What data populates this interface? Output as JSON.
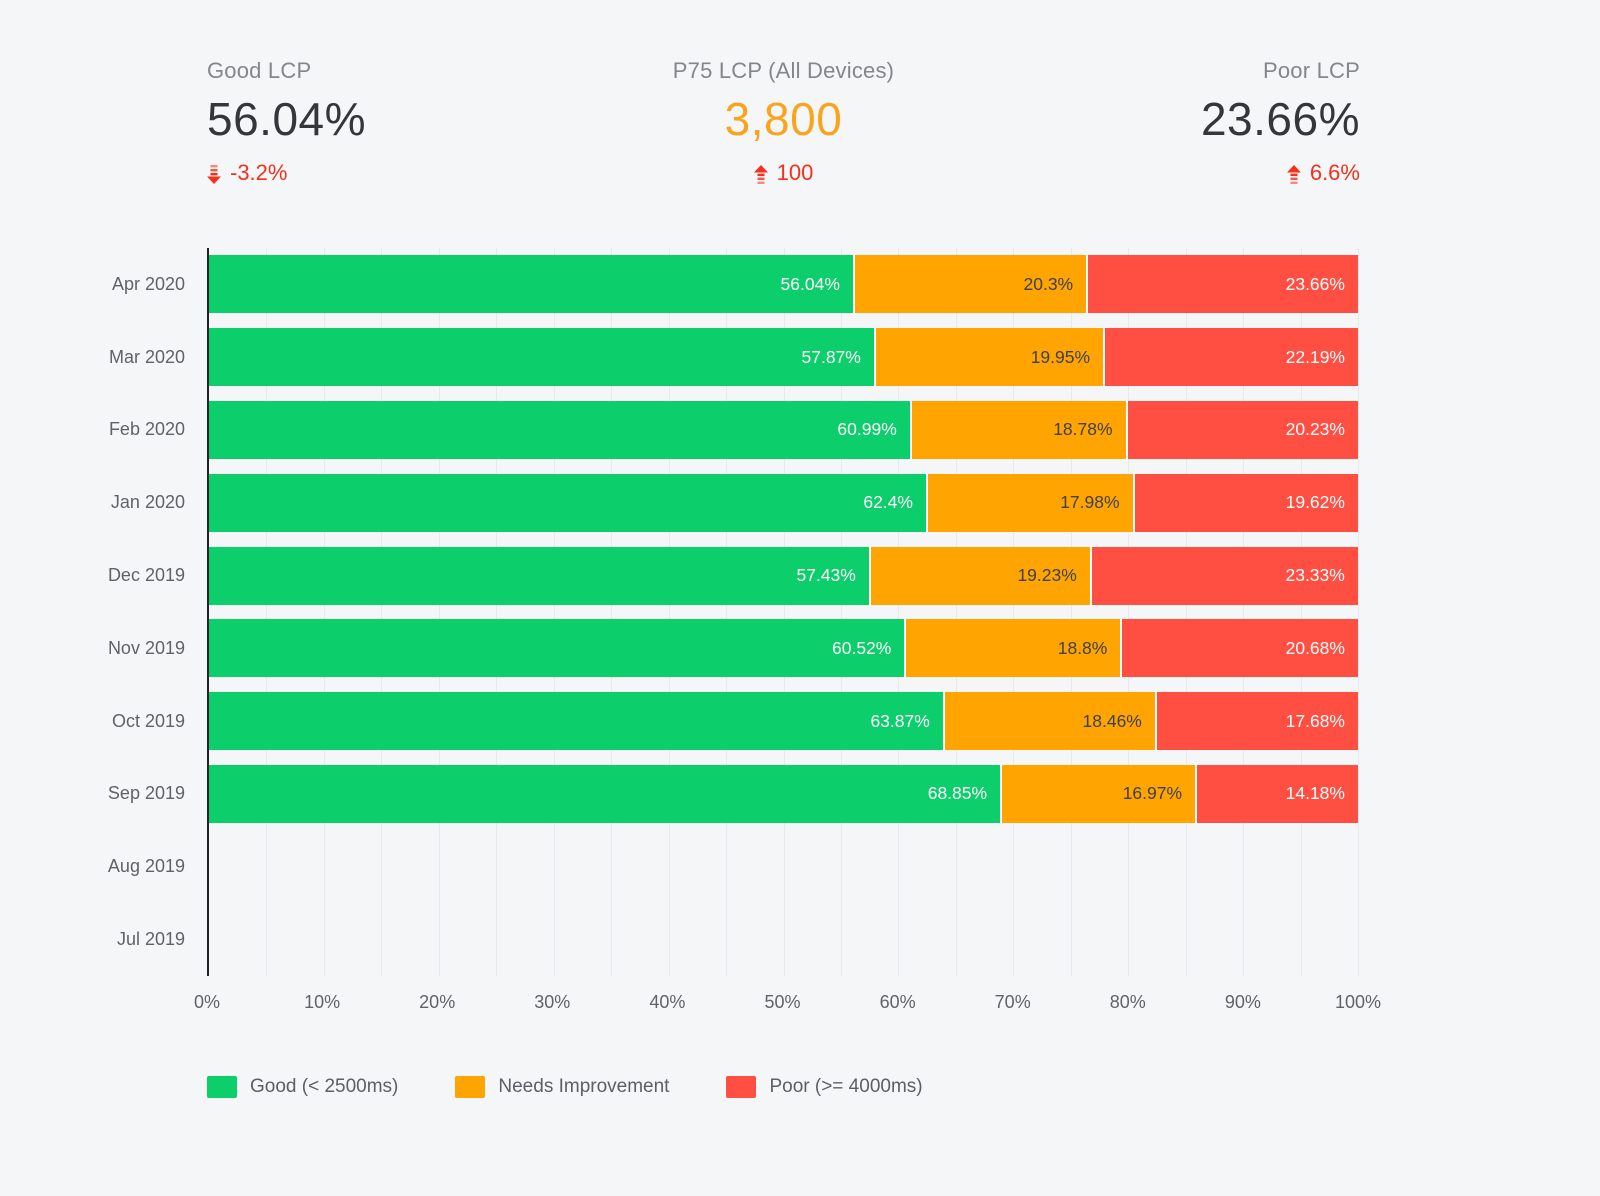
{
  "colors": {
    "good": "#0cce6b",
    "needs_improvement": "#ffa400",
    "poor": "#ff4e42",
    "delta_red": "#f5301c",
    "kpi_orange": "#faa41d",
    "background": "#f5f6f8"
  },
  "kpis": [
    {
      "label": "Good LCP",
      "value": "56.04%",
      "delta": "-3.2%",
      "trend": "down"
    },
    {
      "label": "P75 LCP (All Devices)",
      "value": "3,800",
      "delta": "100",
      "trend": "up"
    },
    {
      "label": "Poor LCP",
      "value": "23.66%",
      "delta": "6.6%",
      "trend": "up"
    }
  ],
  "chart_data": {
    "type": "bar",
    "orientation": "horizontal",
    "stacked": true,
    "title": "",
    "xlabel": "",
    "ylabel": "",
    "xlim": [
      0,
      100
    ],
    "grid": "vertical gridlines every 5%",
    "legend_position": "bottom",
    "categories": [
      "Apr 2020",
      "Mar 2020",
      "Feb 2020",
      "Jan 2020",
      "Dec 2019",
      "Nov 2019",
      "Oct 2019",
      "Sep 2019",
      "Aug 2019",
      "Jul 2019"
    ],
    "x_ticks": [
      "0%",
      "10%",
      "20%",
      "30%",
      "40%",
      "50%",
      "60%",
      "70%",
      "80%",
      "90%",
      "100%"
    ],
    "series": [
      {
        "name": "Good (< 2500ms)",
        "key": "good",
        "color": "#0cce6b",
        "label_color": "#ffffff",
        "values": [
          56.04,
          57.87,
          60.99,
          62.4,
          57.43,
          60.52,
          63.87,
          68.85,
          null,
          null
        ]
      },
      {
        "name": "Needs Improvement",
        "key": "needs-improvement",
        "color": "#ffa400",
        "label_color": "#3f4146",
        "values": [
          20.3,
          19.95,
          18.78,
          17.98,
          19.23,
          18.8,
          18.46,
          16.97,
          null,
          null
        ]
      },
      {
        "name": "Poor (>= 4000ms)",
        "key": "poor",
        "color": "#ff4e42",
        "label_color": "#ffffff",
        "values": [
          23.66,
          22.19,
          20.23,
          19.62,
          23.33,
          20.68,
          17.68,
          14.18,
          null,
          null
        ]
      }
    ]
  }
}
